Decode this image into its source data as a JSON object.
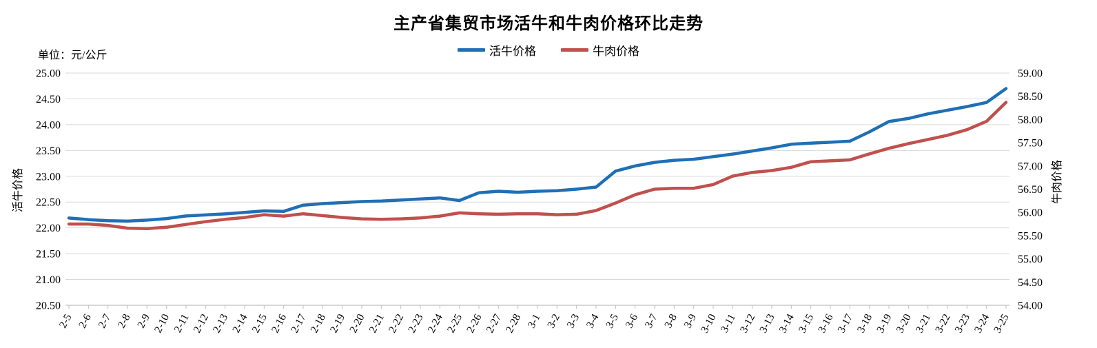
{
  "chart": {
    "title": "主产省集贸市场活牛和牛肉价格环比走势",
    "unit_label": "单位：元/公斤",
    "colors": {
      "live_cattle_line": "#1F6FB5",
      "beef_line": "#C0504D",
      "gridline": "#D9D9D9",
      "axis_line": "#BFBFBF",
      "text": "#000000",
      "background": "#FFFFFF"
    }
  },
  "chart_data": {
    "type": "line",
    "title": "主产省集贸市场活牛和牛肉价格环比走势",
    "unit": "元/公斤",
    "legend_position": "top",
    "grid": true,
    "categories": [
      "2-5",
      "2-6",
      "2-7",
      "2-8",
      "2-9",
      "2-10",
      "2-11",
      "2-12",
      "2-13",
      "2-14",
      "2-15",
      "2-16",
      "2-17",
      "2-18",
      "2-19",
      "2-20",
      "2-21",
      "2-22",
      "2-23",
      "2-24",
      "2-25",
      "2-26",
      "2-27",
      "2-28",
      "3-1",
      "3-2",
      "3-3",
      "3-4",
      "3-5",
      "3-6",
      "3-7",
      "3-8",
      "3-9",
      "3-10",
      "3-11",
      "3-12",
      "3-13",
      "3-14",
      "3-15",
      "3-16",
      "3-17",
      "3-18",
      "3-19",
      "3-20",
      "3-21",
      "3-22",
      "3-23",
      "3-24",
      "3-25"
    ],
    "series": [
      {
        "name": "活牛价格",
        "axis": "left",
        "color": "#1F6FB5",
        "values": [
          22.19,
          22.16,
          22.14,
          22.13,
          22.15,
          22.18,
          22.23,
          22.25,
          22.27,
          22.3,
          22.33,
          22.32,
          22.44,
          22.47,
          22.49,
          22.51,
          22.52,
          22.54,
          22.56,
          22.58,
          22.53,
          22.68,
          22.71,
          22.69,
          22.71,
          22.72,
          22.75,
          22.79,
          23.1,
          23.2,
          23.27,
          23.31,
          23.33,
          23.38,
          23.43,
          23.49,
          23.55,
          23.62,
          23.64,
          23.66,
          23.68,
          23.86,
          24.06,
          24.12,
          24.21,
          24.28,
          24.35,
          24.43,
          24.7
        ]
      },
      {
        "name": "牛肉价格",
        "axis": "right",
        "color": "#C0504D",
        "values": [
          55.75,
          55.75,
          55.72,
          55.66,
          55.65,
          55.68,
          55.74,
          55.8,
          55.85,
          55.89,
          55.95,
          55.92,
          55.97,
          55.93,
          55.89,
          55.86,
          55.85,
          55.86,
          55.88,
          55.92,
          55.99,
          55.97,
          55.96,
          55.97,
          55.97,
          55.95,
          55.96,
          56.04,
          56.2,
          56.38,
          56.5,
          56.52,
          56.52,
          56.6,
          56.78,
          56.86,
          56.9,
          56.97,
          57.09,
          57.11,
          57.13,
          57.26,
          57.38,
          57.48,
          57.57,
          57.66,
          57.78,
          57.96,
          58.37
        ]
      }
    ],
    "left_axis": {
      "label": "活牛价格",
      "min": 20.5,
      "max": 25.0,
      "step": 0.5,
      "tick_labels": [
        "25.00",
        "24.50",
        "24.00",
        "23.50",
        "23.00",
        "22.50",
        "22.00",
        "21.50",
        "21.00",
        "20.50"
      ]
    },
    "right_axis": {
      "label": "牛肉价格",
      "min": 54.0,
      "max": 59.0,
      "step": 0.5,
      "tick_labels": [
        "59.00",
        "58.50",
        "58.00",
        "57.50",
        "57.00",
        "56.50",
        "56.00",
        "55.50",
        "55.00",
        "54.50",
        "54.00"
      ]
    }
  }
}
